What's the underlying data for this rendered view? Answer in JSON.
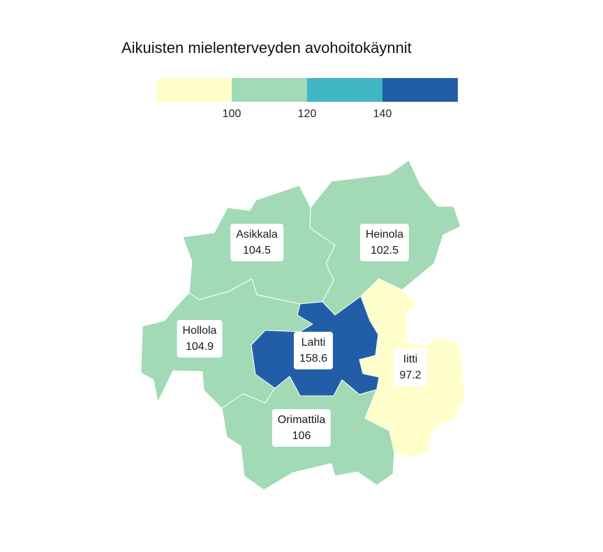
{
  "title": "Aikuisten mielenterveyden avohoitokäynnit",
  "legend": {
    "thresholds": [
      "100",
      "120",
      "140"
    ],
    "bins": [
      {
        "color": "#ffffcc"
      },
      {
        "color": "#a1dab4"
      },
      {
        "color": "#41b6c4"
      },
      {
        "color": "#225ea8"
      }
    ]
  },
  "municipalities": [
    {
      "id": "asikkala",
      "name": "Asikkala",
      "value": "104.5",
      "color": "#a1dab4"
    },
    {
      "id": "heinola",
      "name": "Heinola",
      "value": "102.5",
      "color": "#a1dab4"
    },
    {
      "id": "hollola",
      "name": "Hollola",
      "value": "104.9",
      "color": "#a1dab4"
    },
    {
      "id": "lahti",
      "name": "Lahti",
      "value": "158.6",
      "color": "#225ea8"
    },
    {
      "id": "iitti",
      "name": "Iitti",
      "value": "97.2",
      "color": "#ffffcc"
    },
    {
      "id": "orimattila",
      "name": "Orimattila",
      "value": "106",
      "color": "#a1dab4"
    }
  ]
}
